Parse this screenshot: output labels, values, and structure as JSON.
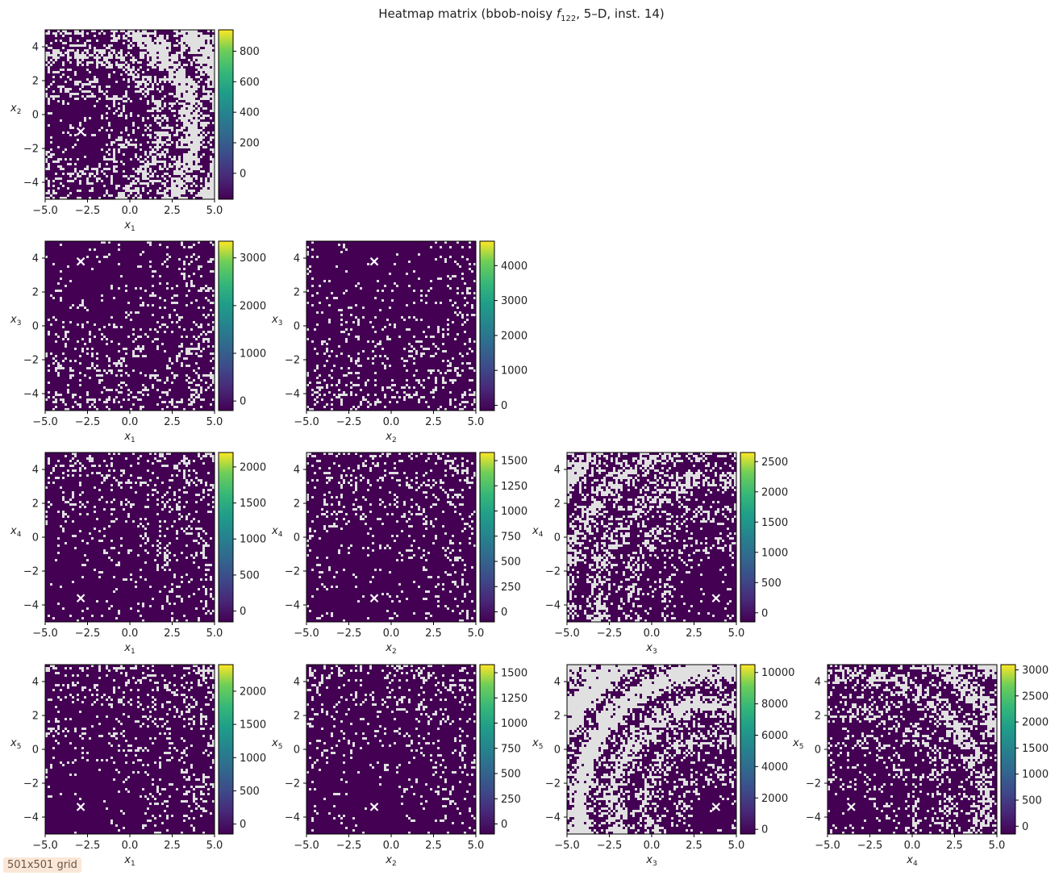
{
  "title": {
    "prefix": "Heatmap matrix (bbob-noisy ",
    "func": "f",
    "func_sub": "122",
    "suffix": ", 5–D, inst. 14)"
  },
  "badge": "501x501 grid",
  "colors": {
    "colormap": "viridis",
    "nan_color": "#e0e0e0",
    "marker": "#ffffff"
  },
  "chart_data": [
    {
      "type": "heatmap",
      "x_var": "1",
      "y_var": "2",
      "xlabel": "x1",
      "ylabel": "x2",
      "xlim": [
        -5,
        5
      ],
      "ylim": [
        -5,
        5
      ],
      "xticks": [
        "−5.0",
        "−2.5",
        "0.0",
        "2.5",
        "5.0"
      ],
      "yticks": [
        "−4",
        "−2",
        "0",
        "2",
        "4"
      ],
      "optimum": [
        -2.9,
        -1.0
      ],
      "colorbar_ticks": [
        0,
        200,
        400,
        600,
        800
      ],
      "colorbar_range": [
        -170,
        940
      ],
      "nan_fraction": "high"
    },
    {
      "type": "heatmap",
      "x_var": "1",
      "y_var": "3",
      "xlabel": "x1",
      "ylabel": "x3",
      "xlim": [
        -5,
        5
      ],
      "ylim": [
        -5,
        5
      ],
      "xticks": [
        "−5.0",
        "−2.5",
        "0.0",
        "2.5",
        "5.0"
      ],
      "yticks": [
        "−4",
        "−2",
        "0",
        "2",
        "4"
      ],
      "optimum": [
        -2.9,
        3.8
      ],
      "colorbar_ticks": [
        0,
        1000,
        2000,
        3000
      ],
      "colorbar_range": [
        -200,
        3350
      ],
      "nan_fraction": "low"
    },
    {
      "type": "heatmap",
      "x_var": "2",
      "y_var": "3",
      "xlabel": "x2",
      "ylabel": "x3",
      "xlim": [
        -5,
        5
      ],
      "ylim": [
        -5,
        5
      ],
      "xticks": [
        "−5.0",
        "−2.5",
        "0.0",
        "2.5",
        "5.0"
      ],
      "yticks": [
        "−4",
        "−2",
        "0",
        "2",
        "4"
      ],
      "optimum": [
        -1.0,
        3.8
      ],
      "colorbar_ticks": [
        0,
        1000,
        2000,
        3000,
        4000
      ],
      "colorbar_range": [
        -150,
        4700
      ],
      "nan_fraction": "low"
    },
    {
      "type": "heatmap",
      "x_var": "1",
      "y_var": "4",
      "xlabel": "x1",
      "ylabel": "x4",
      "xlim": [
        -5,
        5
      ],
      "ylim": [
        -5,
        5
      ],
      "xticks": [
        "−5.0",
        "−2.5",
        "0.0",
        "2.5",
        "5.0"
      ],
      "yticks": [
        "−4",
        "−2",
        "0",
        "2",
        "4"
      ],
      "optimum": [
        -2.9,
        -3.6
      ],
      "colorbar_ticks": [
        0,
        500,
        1000,
        1500,
        2000
      ],
      "colorbar_range": [
        -150,
        2200
      ],
      "nan_fraction": "low"
    },
    {
      "type": "heatmap",
      "x_var": "2",
      "y_var": "4",
      "xlabel": "x2",
      "ylabel": "x4",
      "xlim": [
        -5,
        5
      ],
      "ylim": [
        -5,
        5
      ],
      "xticks": [
        "−5.0",
        "−2.5",
        "0.0",
        "2.5",
        "5.0"
      ],
      "yticks": [
        "−4",
        "−2",
        "0",
        "2",
        "4"
      ],
      "optimum": [
        -1.0,
        -3.6
      ],
      "colorbar_ticks": [
        0,
        250,
        500,
        750,
        1000,
        1250,
        1500
      ],
      "colorbar_range": [
        -100,
        1580
      ],
      "nan_fraction": "low"
    },
    {
      "type": "heatmap",
      "x_var": "3",
      "y_var": "4",
      "xlabel": "x3",
      "ylabel": "x4",
      "xlim": [
        -5,
        5
      ],
      "ylim": [
        -5,
        5
      ],
      "xticks": [
        "−5.0",
        "−2.5",
        "0.0",
        "2.5",
        "5.0"
      ],
      "yticks": [
        "−4",
        "−2",
        "0",
        "2",
        "4"
      ],
      "optimum": [
        3.8,
        -3.6
      ],
      "colorbar_ticks": [
        0,
        500,
        1000,
        1500,
        2000,
        2500
      ],
      "colorbar_range": [
        -150,
        2650
      ],
      "nan_fraction": "medium"
    },
    {
      "type": "heatmap",
      "x_var": "1",
      "y_var": "5",
      "xlabel": "x1",
      "ylabel": "x5",
      "xlim": [
        -5,
        5
      ],
      "ylim": [
        -5,
        5
      ],
      "xticks": [
        "−5.0",
        "−2.5",
        "0.0",
        "2.5",
        "5.0"
      ],
      "yticks": [
        "−4",
        "−2",
        "0",
        "2",
        "4"
      ],
      "optimum": [
        -2.9,
        -3.4
      ],
      "colorbar_ticks": [
        0,
        500,
        1000,
        1500,
        2000
      ],
      "colorbar_range": [
        -150,
        2400
      ],
      "nan_fraction": "low"
    },
    {
      "type": "heatmap",
      "x_var": "2",
      "y_var": "5",
      "xlabel": "x2",
      "ylabel": "x5",
      "xlim": [
        -5,
        5
      ],
      "ylim": [
        -5,
        5
      ],
      "xticks": [
        "−5.0",
        "−2.5",
        "0.0",
        "2.5",
        "5.0"
      ],
      "yticks": [
        "−4",
        "−2",
        "0",
        "2",
        "4"
      ],
      "optimum": [
        -1.0,
        -3.4
      ],
      "colorbar_ticks": [
        0,
        250,
        500,
        750,
        1000,
        1250,
        1500
      ],
      "colorbar_range": [
        -100,
        1580
      ],
      "nan_fraction": "low"
    },
    {
      "type": "heatmap",
      "x_var": "3",
      "y_var": "5",
      "xlabel": "x3",
      "ylabel": "x5",
      "xlim": [
        -5,
        5
      ],
      "ylim": [
        -5,
        5
      ],
      "xticks": [
        "−5.0",
        "−2.5",
        "0.0",
        "2.5",
        "5.0"
      ],
      "yticks": [
        "−4",
        "−2",
        "0",
        "2",
        "4"
      ],
      "optimum": [
        3.8,
        -3.4
      ],
      "colorbar_ticks": [
        0,
        2000,
        4000,
        6000,
        8000,
        10000
      ],
      "colorbar_range": [
        -300,
        10500
      ],
      "nan_fraction": "high"
    },
    {
      "type": "heatmap",
      "x_var": "4",
      "y_var": "5",
      "xlabel": "x4",
      "ylabel": "x5",
      "xlim": [
        -5,
        5
      ],
      "ylim": [
        -5,
        5
      ],
      "xticks": [
        "−5.0",
        "−2.5",
        "0.0",
        "2.5",
        "5.0"
      ],
      "yticks": [
        "−4",
        "−2",
        "0",
        "2",
        "4"
      ],
      "optimum": [
        -3.6,
        -3.4
      ],
      "colorbar_ticks": [
        0,
        500,
        1000,
        1500,
        2000,
        2500,
        3000
      ],
      "colorbar_range": [
        -150,
        3100
      ],
      "nan_fraction": "medium"
    }
  ]
}
